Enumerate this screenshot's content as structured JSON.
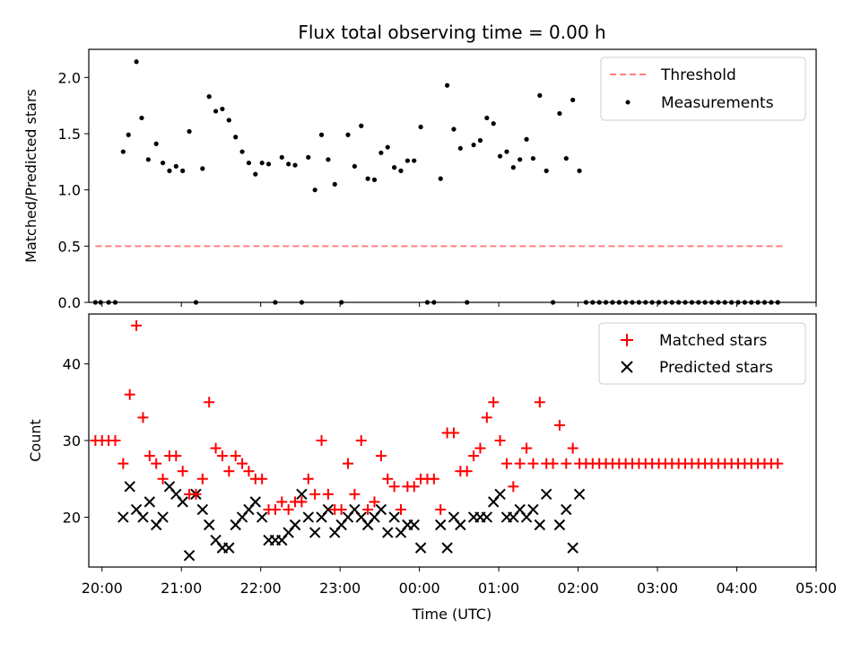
{
  "chart_data": [
    {
      "type": "scatter",
      "title": "Flux total observing time = 0.00 h",
      "xlabel": "",
      "ylabel": "Matched/Predicted stars",
      "xlim": [
        "19:50",
        "29:00"
      ],
      "ylim": [
        0,
        2.25
      ],
      "yticks": [
        0.0,
        0.5,
        1.0,
        1.5,
        2.0
      ],
      "grid": false,
      "legend_position": "top-right",
      "series": [
        {
          "name": "Threshold",
          "kind": "line",
          "color": "#ff8080",
          "style": "dashed",
          "x": [
            "19:55",
            "28:35"
          ],
          "y": [
            0.5,
            0.5
          ]
        },
        {
          "name": "Measurements",
          "kind": "scatter",
          "color": "#000000",
          "marker": "dot",
          "x": [
            "19:55",
            "19:59",
            "20:05",
            "20:10",
            "20:16",
            "20:20",
            "20:26",
            "20:30",
            "20:35",
            "20:41",
            "20:46",
            "20:51",
            "20:56",
            "21:01",
            "21:06",
            "21:11",
            "21:16",
            "21:21",
            "21:26",
            "21:31",
            "21:36",
            "21:41",
            "21:46",
            "21:51",
            "21:56",
            "22:01",
            "22:06",
            "22:11",
            "22:16",
            "22:21",
            "22:26",
            "22:31",
            "22:36",
            "22:41",
            "22:46",
            "22:51",
            "22:56",
            "23:01",
            "23:06",
            "23:11",
            "23:16",
            "23:21",
            "23:26",
            "23:31",
            "23:36",
            "23:41",
            "23:46",
            "23:51",
            "23:56",
            "24:01",
            "24:06",
            "24:11",
            "24:16",
            "24:21",
            "24:26",
            "24:31",
            "24:36",
            "24:41",
            "24:46",
            "24:51",
            "24:56",
            "25:01",
            "25:06",
            "25:11",
            "25:16",
            "25:21",
            "25:26",
            "25:31",
            "25:36",
            "25:41",
            "25:46",
            "25:51",
            "25:56",
            "26:01",
            "26:06",
            "26:11",
            "26:16",
            "26:21",
            "26:26",
            "26:31",
            "26:36",
            "26:41",
            "26:46",
            "26:51",
            "26:56",
            "27:01",
            "27:06",
            "27:11",
            "27:16",
            "27:21",
            "27:26",
            "27:31",
            "27:36",
            "27:41",
            "27:46",
            "27:51",
            "27:56",
            "28:01",
            "28:06",
            "28:11",
            "28:16",
            "28:21",
            "28:26",
            "28:31"
          ],
          "y": [
            0,
            0,
            0,
            0,
            1.34,
            1.49,
            2.14,
            1.64,
            1.27,
            1.41,
            1.24,
            1.17,
            1.21,
            1.17,
            1.52,
            0,
            1.19,
            1.83,
            1.7,
            1.72,
            1.62,
            1.47,
            1.34,
            1.24,
            1.14,
            1.24,
            1.23,
            0,
            1.29,
            1.23,
            1.22,
            0,
            1.29,
            1.0,
            1.49,
            1.27,
            1.05,
            0,
            1.49,
            1.21,
            1.57,
            1.1,
            1.09,
            1.33,
            1.38,
            1.2,
            1.17,
            1.26,
            1.26,
            1.56,
            0,
            0,
            1.1,
            1.93,
            1.54,
            1.37,
            0,
            1.4,
            1.44,
            1.64,
            1.59,
            1.3,
            1.34,
            1.2,
            1.27,
            1.45,
            1.28,
            1.84,
            1.17,
            0,
            1.68,
            1.28,
            1.8,
            1.17,
            0,
            0,
            0,
            0,
            0,
            0,
            0,
            0,
            0,
            0,
            0,
            0,
            0,
            0,
            0,
            0,
            0,
            0,
            0,
            0,
            0,
            0,
            0,
            0,
            0,
            0,
            0,
            0,
            0,
            0
          ]
        }
      ]
    },
    {
      "type": "scatter",
      "title": "",
      "xlabel": "Time (UTC)",
      "ylabel": "Count",
      "xlim": [
        "19:50",
        "29:00"
      ],
      "ylim": [
        13.5,
        46.5
      ],
      "yticks": [
        20,
        30,
        40
      ],
      "xticks": [
        "20:00",
        "21:00",
        "22:00",
        "23:00",
        "00:00",
        "01:00",
        "02:00",
        "03:00",
        "04:00",
        "05:00"
      ],
      "grid": false,
      "legend_position": "top-right",
      "series": [
        {
          "name": "Matched stars",
          "kind": "scatter",
          "color": "#ff0000",
          "marker": "plus",
          "x": [
            "19:55",
            "20:00",
            "20:05",
            "20:10",
            "20:16",
            "20:21",
            "20:26",
            "20:31",
            "20:36",
            "20:41",
            "20:46",
            "20:51",
            "20:56",
            "21:01",
            "21:06",
            "21:11",
            "21:16",
            "21:21",
            "21:26",
            "21:31",
            "21:36",
            "21:41",
            "21:46",
            "21:51",
            "21:56",
            "22:01",
            "22:06",
            "22:11",
            "22:16",
            "22:21",
            "22:26",
            "22:31",
            "22:36",
            "22:41",
            "22:46",
            "22:51",
            "22:56",
            "23:01",
            "23:06",
            "23:11",
            "23:16",
            "23:21",
            "23:26",
            "23:31",
            "23:36",
            "23:41",
            "23:46",
            "23:51",
            "23:56",
            "24:01",
            "24:06",
            "24:11",
            "24:16",
            "24:21",
            "24:26",
            "24:31",
            "24:36",
            "24:41",
            "24:46",
            "24:51",
            "24:56",
            "25:01",
            "25:06",
            "25:11",
            "25:16",
            "25:21",
            "25:26",
            "25:31",
            "25:36",
            "25:41",
            "25:46",
            "25:51",
            "25:56",
            "26:01",
            "26:06",
            "26:11",
            "26:16",
            "26:21",
            "26:26",
            "26:31",
            "26:36",
            "26:41",
            "26:46",
            "26:51",
            "26:56",
            "27:01",
            "27:06",
            "27:11",
            "27:16",
            "27:21",
            "27:26",
            "27:31",
            "27:36",
            "27:41",
            "27:46",
            "27:51",
            "27:56",
            "28:01",
            "28:06",
            "28:11",
            "28:16",
            "28:21",
            "28:26",
            "28:31"
          ],
          "y": [
            30,
            30,
            30,
            30,
            27,
            36,
            45,
            33,
            28,
            27,
            25,
            28,
            28,
            26,
            23,
            23,
            25,
            35,
            29,
            28,
            26,
            28,
            27,
            26,
            25,
            25,
            21,
            21,
            22,
            21,
            22,
            22,
            25,
            23,
            30,
            23,
            21,
            21,
            27,
            23,
            30,
            21,
            22,
            28,
            25,
            24,
            21,
            24,
            24,
            25,
            25,
            25,
            21,
            31,
            31,
            26,
            26,
            28,
            29,
            33,
            35,
            30,
            27,
            24,
            27,
            29,
            27,
            35,
            27,
            27,
            32,
            27,
            29,
            27,
            27,
            27,
            27,
            27,
            27,
            27,
            27,
            27,
            27,
            27,
            27,
            27,
            27,
            27,
            27,
            27,
            27,
            27,
            27,
            27,
            27,
            27,
            27,
            27,
            27,
            27,
            27,
            27,
            27,
            27
          ]
        },
        {
          "name": "Predicted stars",
          "kind": "scatter",
          "color": "#000000",
          "marker": "cross",
          "x": [
            "20:16",
            "20:21",
            "20:26",
            "20:31",
            "20:36",
            "20:41",
            "20:46",
            "20:51",
            "20:56",
            "21:01",
            "21:06",
            "21:11",
            "21:16",
            "21:21",
            "21:26",
            "21:31",
            "21:36",
            "21:41",
            "21:46",
            "21:51",
            "21:56",
            "22:01",
            "22:06",
            "22:11",
            "22:16",
            "22:21",
            "22:26",
            "22:31",
            "22:36",
            "22:41",
            "22:46",
            "22:51",
            "22:56",
            "23:01",
            "23:06",
            "23:11",
            "23:16",
            "23:21",
            "23:26",
            "23:31",
            "23:36",
            "23:41",
            "23:46",
            "23:51",
            "23:56",
            "24:01",
            "24:06",
            "24:11",
            "24:16",
            "24:21",
            "24:26",
            "24:31",
            "24:36",
            "24:41",
            "24:46",
            "24:51",
            "24:56",
            "25:01",
            "25:06",
            "25:11",
            "25:16",
            "25:21",
            "25:26",
            "25:31",
            "25:36",
            "25:41",
            "25:46",
            "25:51",
            "25:56",
            "26:01"
          ],
          "y": [
            20,
            24,
            21,
            20,
            22,
            19,
            20,
            24,
            23,
            22,
            15,
            23,
            21,
            19,
            17,
            16,
            16,
            19,
            20,
            21,
            22,
            20,
            17,
            17,
            17,
            18,
            19,
            23,
            20,
            18,
            20,
            21,
            18,
            19,
            20,
            21,
            20,
            19,
            20,
            21,
            18,
            20,
            18,
            19,
            19,
            16,
            null,
            null,
            19,
            16,
            20,
            19,
            null,
            20,
            20,
            20,
            22,
            23,
            20,
            20,
            21,
            20,
            21,
            19,
            23,
            null,
            19,
            21,
            16,
            23
          ]
        }
      ]
    }
  ]
}
